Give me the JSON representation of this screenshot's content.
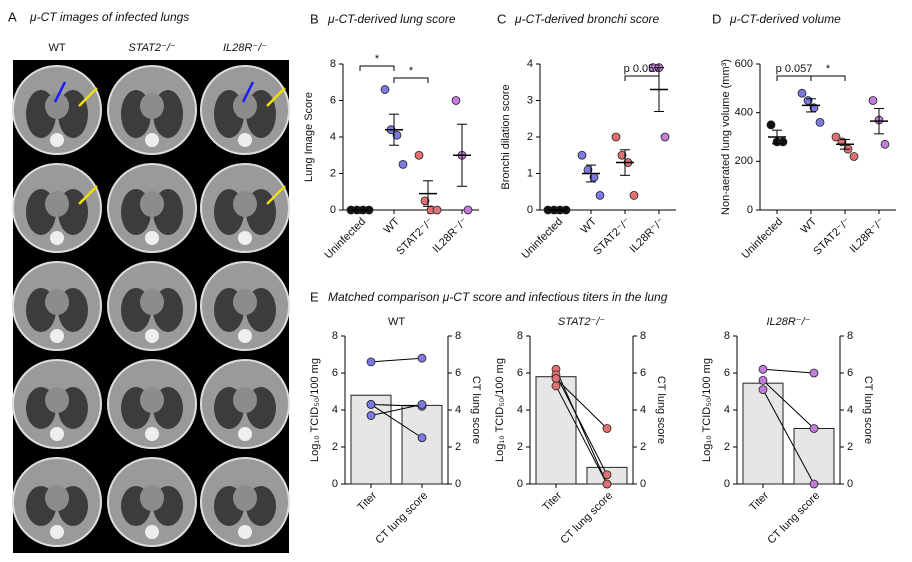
{
  "panel_a": {
    "letter": "A",
    "title": "μ-CT images of infected lungs",
    "columns": [
      "WT",
      "STAT2⁻/⁻",
      "IL28R⁻/⁻"
    ]
  },
  "panel_e": {
    "letter": "E",
    "title": "Matched comparison μ-CT score and infectious titers in the lung"
  },
  "chart_data": [
    {
      "type": "dot",
      "panel": "B",
      "title": "μ-CT-derived lung score",
      "y_label": "Lung Image Score",
      "categories": [
        "Uninfected",
        "WT",
        "STAT2⁻/⁻",
        "IL28R⁻/⁻"
      ],
      "groups": [
        {
          "color": "#111111",
          "values": [
            0,
            0,
            0,
            0
          ],
          "mean": 0,
          "sem": 0
        },
        {
          "color": "#7a7ae0",
          "values": [
            6.6,
            4.4,
            4.1,
            2.5
          ],
          "mean": 4.4,
          "sem": 0.85
        },
        {
          "color": "#e07272",
          "values": [
            3,
            0.5,
            0,
            0
          ],
          "mean": 0.9,
          "sem": 0.7
        },
        {
          "color": "#c27ddc",
          "values": [
            6,
            3,
            0
          ],
          "mean": 3,
          "sem": 1.7
        }
      ],
      "annotations": [
        "*",
        "*"
      ],
      "ylim": [
        0,
        8
      ],
      "yticks": [
        0,
        2,
        4,
        6,
        8
      ]
    },
    {
      "type": "dot",
      "panel": "C",
      "title": "μ-CT-derived bronchi score",
      "y_label": "Bronchi dilation score",
      "categories": [
        "Uninfected",
        "WT",
        "STAT2⁻/⁻",
        "IL28R⁻/⁻"
      ],
      "groups": [
        {
          "color": "#111111",
          "values": [
            0,
            0,
            0,
            0
          ],
          "mean": 0,
          "sem": 0
        },
        {
          "color": "#7a7ae0",
          "values": [
            1.5,
            1.1,
            0.9,
            0.4
          ],
          "mean": 1.0,
          "sem": 0.23
        },
        {
          "color": "#e07272",
          "values": [
            2.0,
            1.5,
            1.3,
            0.4
          ],
          "mean": 1.3,
          "sem": 0.35
        },
        {
          "color": "#c27ddc",
          "values": [
            3.9,
            3.9,
            2.0
          ],
          "mean": 3.3,
          "sem": 0.6
        }
      ],
      "annotations": [
        "p 0.057"
      ],
      "ylim": [
        0,
        4
      ],
      "yticks": [
        0,
        1,
        2,
        3,
        4
      ]
    },
    {
      "type": "dot",
      "panel": "D",
      "title": "μ-CT-derived volume",
      "y_label": "Non-aerated lung volume (mm³)",
      "categories": [
        "Uninfected",
        "WT",
        "STAT2⁻/⁻",
        "IL28R⁻/⁻"
      ],
      "groups": [
        {
          "color": "#111111",
          "values": [
            350,
            280,
            280
          ],
          "mean": 300,
          "sem": 28
        },
        {
          "color": "#7a7ae0",
          "values": [
            480,
            450,
            420,
            360
          ],
          "mean": 430,
          "sem": 27
        },
        {
          "color": "#e07272",
          "values": [
            300,
            280,
            250,
            220
          ],
          "mean": 270,
          "sem": 20
        },
        {
          "color": "#c27ddc",
          "values": [
            450,
            370,
            270
          ],
          "mean": 365,
          "sem": 52
        }
      ],
      "annotations": [
        "p 0.057",
        "*"
      ],
      "ylim": [
        0,
        600
      ],
      "yticks": [
        0,
        200,
        400,
        600
      ]
    },
    {
      "type": "paired",
      "title": "WT",
      "categories": [
        "Titer",
        "CT lung score"
      ],
      "values": [
        4.8,
        4.25
      ],
      "pairs": [
        [
          6.6,
          6.8
        ],
        [
          4.3,
          4.2
        ],
        [
          4.3,
          2.5
        ],
        [
          3.7,
          4.3
        ]
      ],
      "color": "#e6e6e6",
      "point_color": "#7a7ae0",
      "y_label": "Log₁₀ TCID₅₀/100 mg",
      "y2_label": "CT lung score",
      "ylim": [
        0,
        8
      ],
      "yticks": [
        0,
        2,
        4,
        6,
        8
      ],
      "y2lim": [
        0,
        8
      ],
      "y2ticks": [
        0,
        2,
        4,
        6,
        8
      ]
    },
    {
      "type": "paired",
      "title": "STAT2⁻/⁻",
      "categories": [
        "Titer",
        "CT lung score"
      ],
      "values": [
        5.8,
        0.9
      ],
      "pairs": [
        [
          6.2,
          0
        ],
        [
          5.9,
          0.5
        ],
        [
          5.7,
          3
        ],
        [
          5.3,
          0
        ]
      ],
      "color": "#e6e6e6",
      "point_color": "#e07272",
      "y_label": "Log₁₀ TCID₅₀/100 mg",
      "y2_label": "CT lung score",
      "ylim": [
        0,
        8
      ],
      "yticks": [
        0,
        2,
        4,
        6,
        8
      ],
      "y2lim": [
        0,
        8
      ],
      "y2ticks": [
        0,
        2,
        4,
        6,
        8
      ]
    },
    {
      "type": "paired",
      "title": "IL28R⁻/⁻",
      "categories": [
        "Titer",
        "CT lung score"
      ],
      "values": [
        5.45,
        3
      ],
      "pairs": [
        [
          6.2,
          6
        ],
        [
          5.6,
          3
        ],
        [
          5.1,
          0
        ]
      ],
      "color": "#e6e6e6",
      "point_color": "#c27ddc",
      "y_label": "Log₁₀ TCID₅₀/100 mg",
      "y2_label": "CT lung score",
      "ylim": [
        0,
        8
      ],
      "yticks": [
        0,
        2,
        4,
        6,
        8
      ],
      "y2lim": [
        0,
        8
      ],
      "y2ticks": [
        0,
        2,
        4,
        6,
        8
      ]
    }
  ]
}
